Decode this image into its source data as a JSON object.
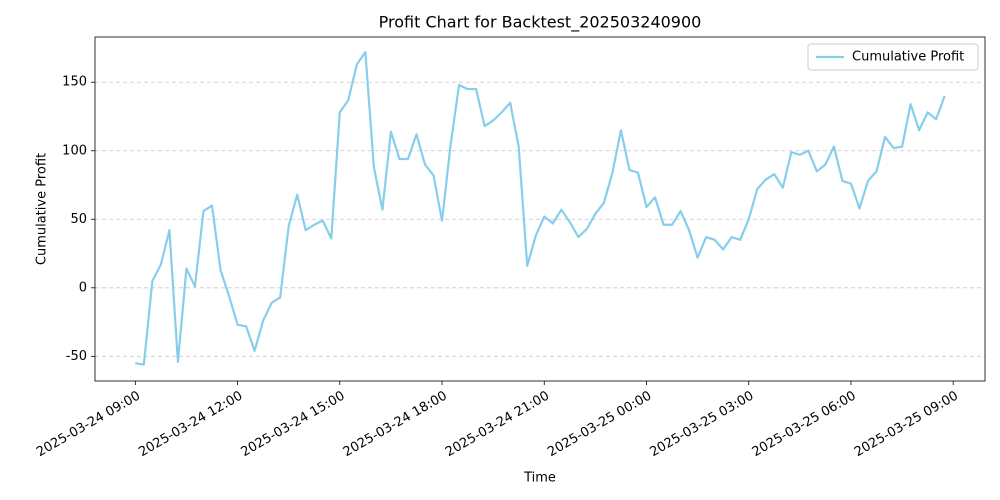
{
  "chart_data": {
    "type": "line",
    "title": "Profit Chart for Backtest_202503240900",
    "x_label": "Time",
    "y_label": "Cumulative Profit",
    "x": [
      "2025-03-24 09:00",
      "2025-03-24 09:15",
      "2025-03-24 09:30",
      "2025-03-24 09:45",
      "2025-03-24 10:00",
      "2025-03-24 10:15",
      "2025-03-24 10:30",
      "2025-03-24 10:45",
      "2025-03-24 11:00",
      "2025-03-24 11:15",
      "2025-03-24 11:30",
      "2025-03-24 11:45",
      "2025-03-24 12:00",
      "2025-03-24 12:15",
      "2025-03-24 12:30",
      "2025-03-24 12:45",
      "2025-03-24 13:00",
      "2025-03-24 13:15",
      "2025-03-24 13:30",
      "2025-03-24 13:45",
      "2025-03-24 14:00",
      "2025-03-24 14:15",
      "2025-03-24 14:30",
      "2025-03-24 14:45",
      "2025-03-24 15:00",
      "2025-03-24 15:15",
      "2025-03-24 15:30",
      "2025-03-24 15:45",
      "2025-03-24 16:00",
      "2025-03-24 16:15",
      "2025-03-24 16:30",
      "2025-03-24 16:45",
      "2025-03-24 17:00",
      "2025-03-24 17:15",
      "2025-03-24 17:30",
      "2025-03-24 17:45",
      "2025-03-24 18:00",
      "2025-03-24 18:15",
      "2025-03-24 18:30",
      "2025-03-24 18:45",
      "2025-03-24 19:00",
      "2025-03-24 19:15",
      "2025-03-24 19:30",
      "2025-03-24 19:45",
      "2025-03-24 20:00",
      "2025-03-24 20:15",
      "2025-03-24 20:30",
      "2025-03-24 20:45",
      "2025-03-24 21:00",
      "2025-03-24 21:15",
      "2025-03-24 21:30",
      "2025-03-24 21:45",
      "2025-03-24 22:00",
      "2025-03-24 22:15",
      "2025-03-24 22:30",
      "2025-03-24 22:45",
      "2025-03-24 23:00",
      "2025-03-24 23:15",
      "2025-03-24 23:30",
      "2025-03-24 23:45",
      "2025-03-25 00:00",
      "2025-03-25 00:15",
      "2025-03-25 00:30",
      "2025-03-25 00:45",
      "2025-03-25 01:00",
      "2025-03-25 01:15",
      "2025-03-25 01:30",
      "2025-03-25 01:45",
      "2025-03-25 02:00",
      "2025-03-25 02:15",
      "2025-03-25 02:30",
      "2025-03-25 02:45",
      "2025-03-25 03:00",
      "2025-03-25 03:15",
      "2025-03-25 03:30",
      "2025-03-25 03:45",
      "2025-03-25 04:00",
      "2025-03-25 04:15",
      "2025-03-25 04:30",
      "2025-03-25 04:45",
      "2025-03-25 05:00",
      "2025-03-25 05:15",
      "2025-03-25 05:30",
      "2025-03-25 05:45",
      "2025-03-25 06:00",
      "2025-03-25 06:15",
      "2025-03-25 06:30",
      "2025-03-25 06:45",
      "2025-03-25 07:00",
      "2025-03-25 07:15",
      "2025-03-25 07:30",
      "2025-03-25 07:45",
      "2025-03-25 08:00",
      "2025-03-25 08:15",
      "2025-03-25 08:30",
      "2025-03-25 08:45"
    ],
    "series": [
      {
        "name": "Cumulative Profit",
        "color": "#87ceeb",
        "values": [
          -55,
          -56,
          5,
          17,
          42,
          -54,
          14,
          1,
          56,
          60,
          13,
          -6,
          -27,
          -28,
          -46,
          -24,
          -11,
          -7,
          45,
          68,
          42,
          46,
          49,
          36,
          128,
          137,
          163,
          172,
          88,
          57,
          114,
          94,
          94,
          112,
          90,
          82,
          49,
          104,
          148,
          145,
          145,
          118,
          122,
          128,
          135,
          103,
          16,
          38,
          52,
          47,
          57,
          48,
          37,
          43,
          54,
          62,
          84,
          115,
          86,
          84,
          59,
          66,
          46,
          46,
          56,
          42,
          22,
          37,
          35,
          28,
          37,
          35,
          50,
          72,
          79,
          83,
          73,
          99,
          97,
          100,
          85,
          90,
          103,
          78,
          76,
          58,
          78,
          85,
          110,
          102,
          103,
          134,
          115,
          128,
          123,
          140
        ]
      }
    ],
    "xlim": [
      "2025-03-24 07:49",
      "2025-03-25 09:56"
    ],
    "xticks": [
      "2025-03-24 09:00",
      "2025-03-24 12:00",
      "2025-03-24 15:00",
      "2025-03-24 18:00",
      "2025-03-24 21:00",
      "2025-03-25 00:00",
      "2025-03-25 03:00",
      "2025-03-25 06:00",
      "2025-03-25 09:00"
    ],
    "ylim": [
      -68,
      183
    ],
    "yticks": [
      -50,
      0,
      50,
      100,
      150
    ],
    "grid": "y",
    "legend": "upper right"
  }
}
